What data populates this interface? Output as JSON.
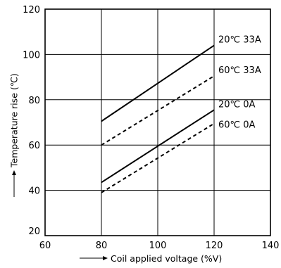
{
  "chart_data": {
    "type": "line",
    "xlabel": "Coil applied voltage (%V)",
    "ylabel": "Temperature rise (℃)",
    "xlim": [
      60,
      140
    ],
    "ylim": [
      20,
      120
    ],
    "xticks": [
      60,
      80,
      100,
      120,
      140
    ],
    "yticks": [
      20,
      40,
      60,
      80,
      100,
      120
    ],
    "grid": true,
    "series": [
      {
        "name": "20℃ 33A",
        "style": "solid",
        "x": [
          80,
          120
        ],
        "y": [
          70.5,
          104
        ]
      },
      {
        "name": "60℃ 33A",
        "style": "dashed",
        "x": [
          80,
          120
        ],
        "y": [
          60,
          90.5
        ]
      },
      {
        "name": "20℃ 0A",
        "style": "solid",
        "x": [
          80,
          120
        ],
        "y": [
          43.5,
          75.5
        ]
      },
      {
        "name": "60℃ 0A",
        "style": "dashed",
        "x": [
          80,
          120
        ],
        "y": [
          39,
          69.5
        ]
      }
    ],
    "colors": {
      "line": "#000000",
      "grid": "#000000"
    }
  }
}
